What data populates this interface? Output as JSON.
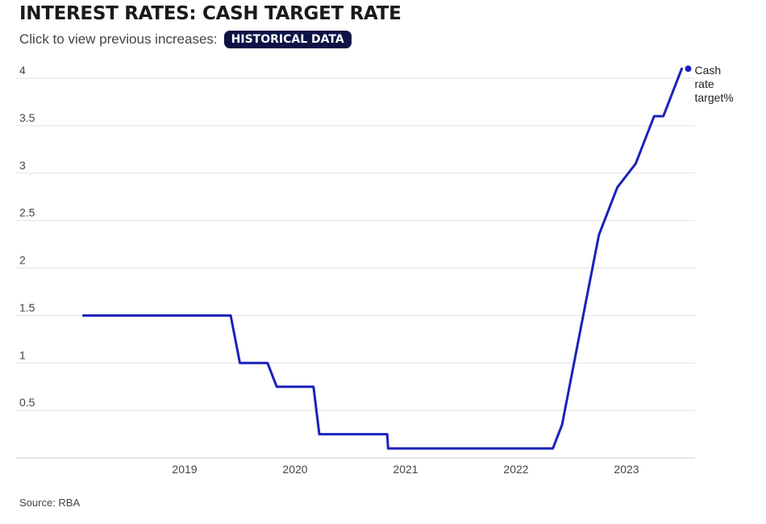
{
  "header": {
    "title": "INTEREST RATES: CASH TARGET RATE",
    "subtitle": "Click to view previous increases:",
    "button_label": "HISTORICAL DATA"
  },
  "footer": {
    "source": "Source: RBA"
  },
  "colors": {
    "line": "#1a22b8",
    "grid": "#e2e2e2",
    "button_bg": "#0c1446"
  },
  "chart_data": {
    "type": "line",
    "title": "INTEREST RATES: CASH TARGET RATE",
    "xlabel": "",
    "ylabel": "",
    "y_ticks": [
      "0.5",
      "1",
      "1.5",
      "2",
      "2.5",
      "3",
      "3.5",
      "4"
    ],
    "x_ticks": [
      "2019",
      "2020",
      "2021",
      "2022",
      "2023"
    ],
    "ylim": [
      0,
      4.1
    ],
    "xlim": [
      "2018-01",
      "2023-08"
    ],
    "grid": true,
    "legend_placement": "end-of-line label",
    "series": [
      {
        "name": "Cash rate target%",
        "x": [
          "2018-02",
          "2019-06",
          "2019-07",
          "2019-10",
          "2019-11",
          "2020-03",
          "2020-03-20",
          "2020-11",
          "2020-11-04",
          "2022-05",
          "2022-06",
          "2022-07",
          "2022-08",
          "2022-09",
          "2022-10",
          "2022-12",
          "2023-02",
          "2023-03",
          "2023-04",
          "2023-05",
          "2023-06",
          "2023-07"
        ],
        "values": [
          1.5,
          1.5,
          1.0,
          1.0,
          0.75,
          0.75,
          0.25,
          0.25,
          0.1,
          0.1,
          0.35,
          0.85,
          1.35,
          1.85,
          2.35,
          2.85,
          3.1,
          3.35,
          3.6,
          3.6,
          3.85,
          4.1
        ]
      }
    ]
  }
}
